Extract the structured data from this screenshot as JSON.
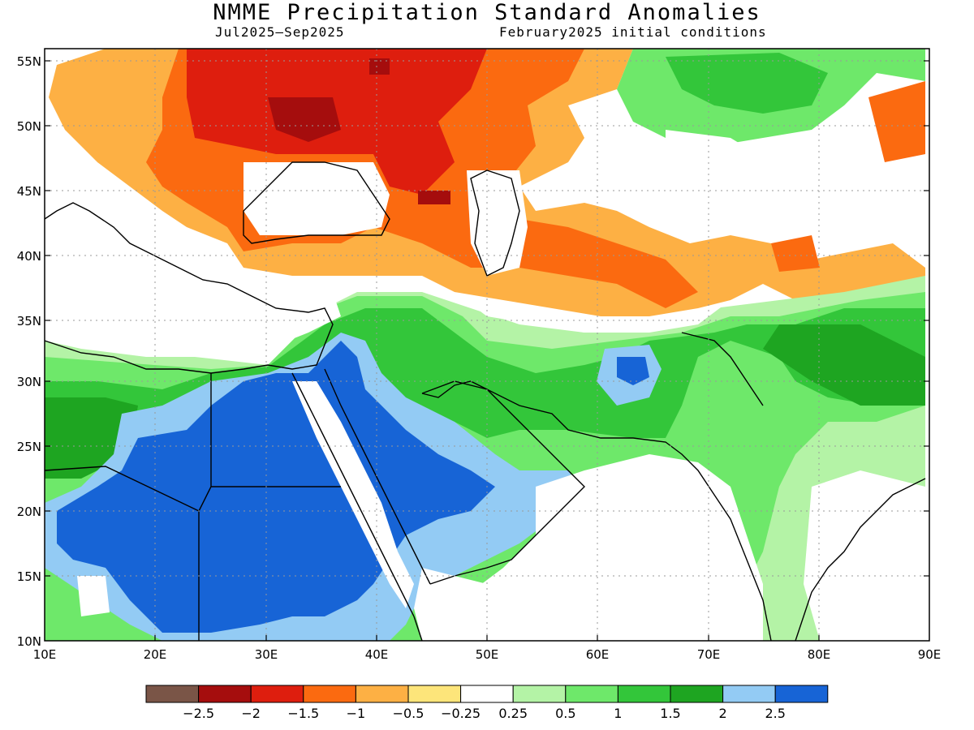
{
  "title": "NMME Precipitation Standard Anomalies",
  "subtitle_period": "Jul2025–Sep2025",
  "subtitle_init": "February2025 initial conditions",
  "lat_labels": [
    "55N",
    "50N",
    "45N",
    "40N",
    "35N",
    "30N",
    "25N",
    "20N",
    "15N",
    "10N"
  ],
  "lon_labels": [
    "10E",
    "20E",
    "30E",
    "40E",
    "50E",
    "60E",
    "70E",
    "80E",
    "90E"
  ],
  "legend": {
    "colors": [
      "#7a5547",
      "#a50d0d",
      "#de1e0e",
      "#fb6a10",
      "#fdb044",
      "#fde57a",
      "#ffffff",
      "#b4f3a6",
      "#6ee86a",
      "#33c63a",
      "#1ea521",
      "#93cbf4",
      "#1764d6"
    ],
    "labels": [
      "−2.5",
      "−2",
      "−1.5",
      "−1",
      "−0.5",
      "−0.25",
      "0.25",
      "0.5",
      "1",
      "1.5",
      "2",
      "2.5"
    ]
  },
  "colors": {
    "frame": "#000000",
    "gridline": "#999999"
  }
}
